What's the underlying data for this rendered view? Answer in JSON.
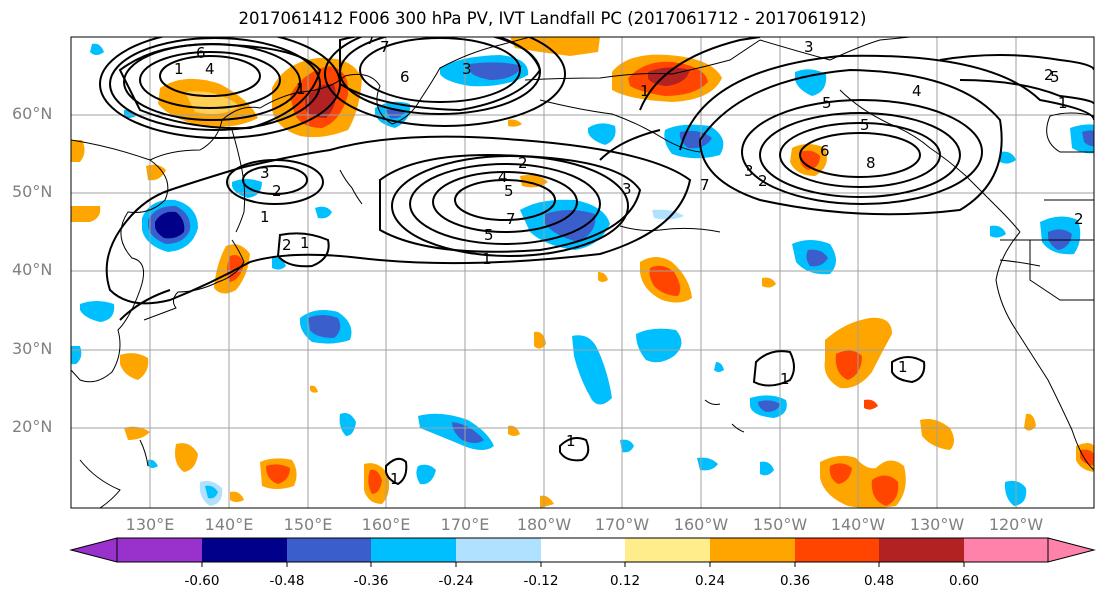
{
  "title": "2017061412 F006 300 hPa PV, IVT Landfall PC (2017061712 - 2017061912)",
  "lat_labels": [
    "60°N",
    "50°N",
    "40°N",
    "30°N",
    "20°N"
  ],
  "lon_labels": [
    "130°E",
    "140°E",
    "150°E",
    "160°E",
    "170°E",
    "180°W",
    "170°W",
    "160°W",
    "150°W",
    "140°W",
    "130°W",
    "120°W"
  ],
  "colorbar": {
    "colors": [
      "#9932cc",
      "#00008b",
      "#3a5fcd",
      "#00bfff",
      "#b0e2ff",
      "#ffffff",
      "#ffec8b",
      "#ffa500",
      "#ff4500",
      "#b22222",
      "#ff82ab"
    ],
    "tick_labels": [
      "-0.60",
      "-0.48",
      "-0.36",
      "-0.24",
      "-0.12",
      "0.12",
      "0.24",
      "0.36",
      "0.48",
      "0.60"
    ]
  },
  "contour_labels": [
    "6",
    "4",
    "7",
    "7",
    "3",
    "6",
    "1",
    "3",
    "2",
    "1",
    "1",
    "5",
    "4",
    "7",
    "5",
    "2",
    "2",
    "1",
    "3",
    "5",
    "6",
    "8",
    "7",
    "5",
    "3",
    "2",
    "1",
    "2",
    "3",
    "1",
    "4",
    "5",
    "2",
    "1",
    "1",
    "1",
    "1",
    "1"
  ]
}
